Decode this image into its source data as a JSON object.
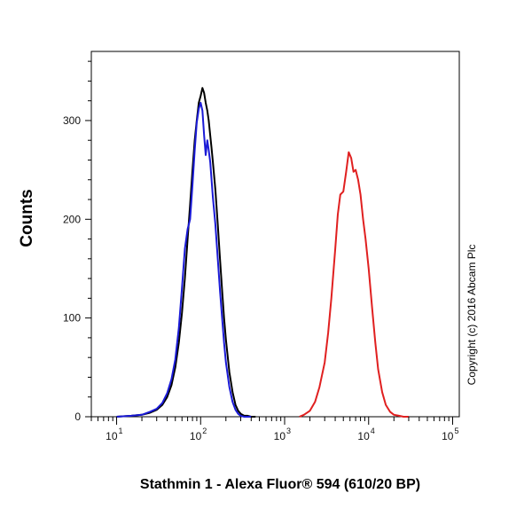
{
  "chart_data": {
    "type": "line",
    "title": "",
    "xlabel": "Stathmin 1 - Alexa Fluor® 594 (610/20 BP)",
    "ylabel": "Counts",
    "x_scale": "log",
    "xlim": [
      5,
      120000
    ],
    "ylim": [
      0,
      370
    ],
    "x_ticks": [
      {
        "value": 10,
        "base": "10",
        "exp": "1"
      },
      {
        "value": 100,
        "base": "10",
        "exp": "2"
      },
      {
        "value": 1000,
        "base": "10",
        "exp": "3"
      },
      {
        "value": 10000,
        "base": "10",
        "exp": "4"
      },
      {
        "value": 100000,
        "base": "10",
        "exp": "5"
      }
    ],
    "y_ticks": [
      {
        "value": 0,
        "label": "0"
      },
      {
        "value": 100,
        "label": "100"
      },
      {
        "value": 200,
        "label": "200"
      },
      {
        "value": 300,
        "label": "300"
      }
    ],
    "grid": false,
    "legend": "none",
    "annotation": "Copyright (c) 2016 Abcam Plc",
    "series": [
      {
        "color": "#000000",
        "x": [
          10,
          15,
          20,
          25,
          30,
          35,
          40,
          45,
          50,
          55,
          60,
          65,
          70,
          75,
          80,
          85,
          90,
          95,
          100,
          105,
          110,
          115,
          120,
          125,
          130,
          135,
          140,
          150,
          160,
          170,
          180,
          190,
          200,
          220,
          240,
          260,
          280,
          300,
          330,
          360,
          400,
          450
        ],
        "y": [
          0,
          1,
          2,
          4,
          7,
          12,
          20,
          32,
          50,
          75,
          105,
          140,
          180,
          215,
          250,
          280,
          300,
          318,
          325,
          333,
          328,
          318,
          310,
          300,
          285,
          272,
          258,
          230,
          195,
          160,
          128,
          100,
          78,
          45,
          25,
          12,
          6,
          3,
          1,
          1,
          0,
          0
        ]
      },
      {
        "color": "#1a1ad6",
        "x": [
          10,
          15,
          20,
          25,
          30,
          35,
          40,
          45,
          50,
          55,
          60,
          65,
          70,
          75,
          80,
          85,
          90,
          95,
          100,
          105,
          110,
          115,
          120,
          125,
          130,
          135,
          140,
          150,
          160,
          170,
          180,
          190,
          200,
          220,
          240,
          260,
          280,
          300,
          330,
          360,
          400
        ],
        "y": [
          0,
          1,
          2,
          5,
          8,
          14,
          24,
          38,
          58,
          90,
          130,
          170,
          190,
          200,
          235,
          270,
          298,
          312,
          318,
          310,
          285,
          265,
          280,
          270,
          258,
          240,
          222,
          195,
          160,
          128,
          100,
          75,
          55,
          30,
          15,
          7,
          3,
          1,
          0,
          0,
          0
        ]
      },
      {
        "color": "#e02020",
        "x": [
          1500,
          1700,
          2000,
          2300,
          2600,
          3000,
          3300,
          3600,
          4000,
          4300,
          4600,
          5000,
          5400,
          5800,
          6200,
          6600,
          7000,
          7500,
          8000,
          8600,
          9200,
          10000,
          11000,
          12000,
          13000,
          14500,
          16000,
          18000,
          20000,
          23000,
          26000,
          30000
        ],
        "y": [
          0,
          2,
          6,
          15,
          30,
          55,
          85,
          120,
          170,
          205,
          225,
          228,
          248,
          268,
          262,
          248,
          250,
          240,
          225,
          200,
          180,
          150,
          110,
          75,
          48,
          25,
          12,
          5,
          2,
          1,
          0,
          0
        ]
      }
    ]
  }
}
